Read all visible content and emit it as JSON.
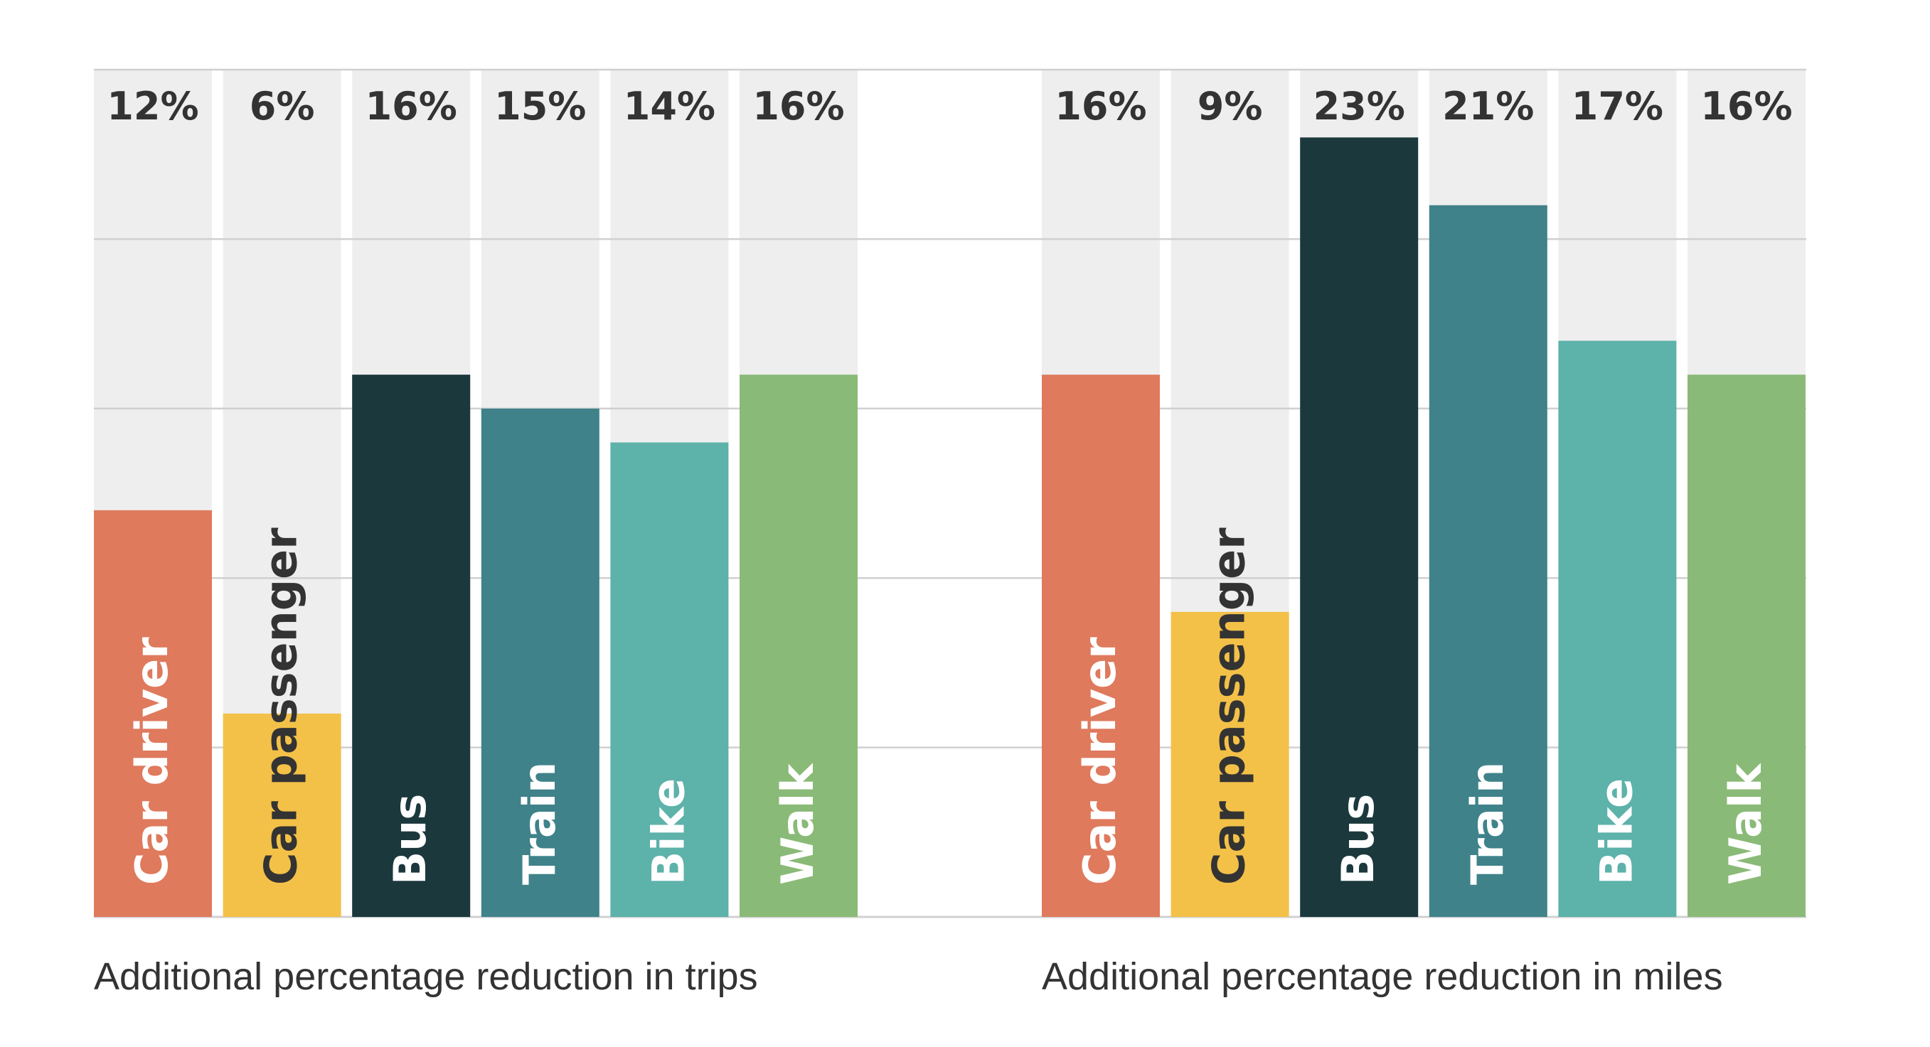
{
  "chart_data": [
    {
      "type": "bar",
      "categories": [
        "Car driver",
        "Car passenger",
        "Bus",
        "Train",
        "Bike",
        "Walk"
      ],
      "values": [
        12,
        6,
        16,
        15,
        14,
        16
      ],
      "value_labels": [
        "12%",
        "6%",
        "16%",
        "15%",
        "14%",
        "16%"
      ],
      "caption": "Additional percentage reduction in trips",
      "ylim": [
        0,
        25
      ],
      "grid": true
    },
    {
      "type": "bar",
      "categories": [
        "Car driver",
        "Car passenger",
        "Bus",
        "Train",
        "Bike",
        "Walk"
      ],
      "values": [
        16,
        9,
        23,
        21,
        17,
        16
      ],
      "value_labels": [
        "16%",
        "9%",
        "23%",
        "21%",
        "17%",
        "16%"
      ],
      "caption": "Additional percentage reduction in miles",
      "ylim": [
        0,
        25
      ],
      "grid": true
    }
  ],
  "colors": {
    "Car driver": "#df7a5d",
    "Car passenger": "#f3c148",
    "Bus": "#1b383d",
    "Train": "#3f828a",
    "Bike": "#5db2aa",
    "Walk": "#8aba77",
    "track": "#eeeeee",
    "grid": "#d0d0d0"
  },
  "label_colors": {
    "Car driver": "#ffffff",
    "Car passenger": "#333333",
    "Bus": "#ffffff",
    "Train": "#ffffff",
    "Bike": "#ffffff",
    "Walk": "#ffffff"
  }
}
